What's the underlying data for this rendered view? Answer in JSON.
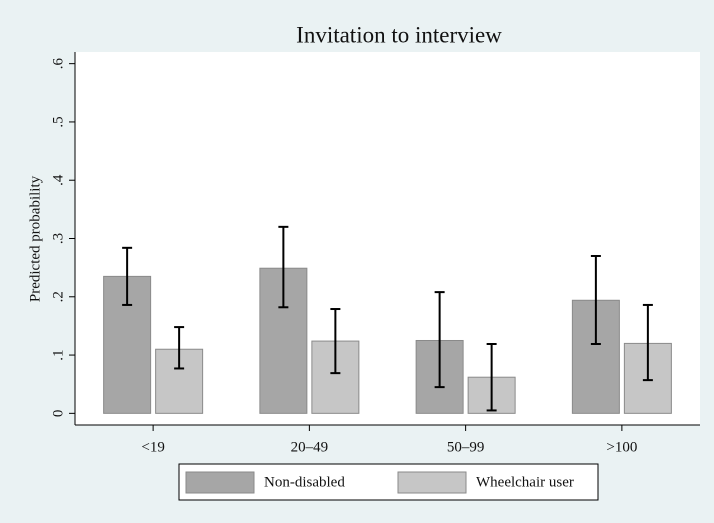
{
  "chart_data": {
    "type": "bar",
    "title": "Invitation to interview",
    "y_label": "Predicted probability",
    "categories": [
      "<19",
      "20–49",
      "50–99",
      ">100"
    ],
    "series": [
      {
        "name": "Non-disabled",
        "color": "#a6a6a6",
        "values": [
          0.235,
          0.249,
          0.125,
          0.194
        ],
        "lower": [
          0.186,
          0.182,
          0.045,
          0.119
        ],
        "upper": [
          0.284,
          0.32,
          0.208,
          0.27
        ]
      },
      {
        "name": "Wheelchair user",
        "color": "#c6c6c6",
        "values": [
          0.11,
          0.124,
          0.062,
          0.12
        ],
        "lower": [
          0.077,
          0.069,
          0.005,
          0.057
        ],
        "upper": [
          0.148,
          0.179,
          0.119,
          0.186
        ]
      }
    ],
    "ylim": [
      -0.02,
      0.62
    ],
    "yticks": [
      0,
      {
        "value": 0.1,
        "label": ".1"
      },
      {
        "value": 0.2,
        "label": ".2"
      },
      {
        "value": 0.3,
        "label": ".3"
      },
      {
        "value": 0.4,
        "label": ".4"
      },
      {
        "value": 0.5,
        "label": ".5"
      },
      {
        "value": 0.6,
        "label": ".6"
      }
    ],
    "grid": false
  }
}
